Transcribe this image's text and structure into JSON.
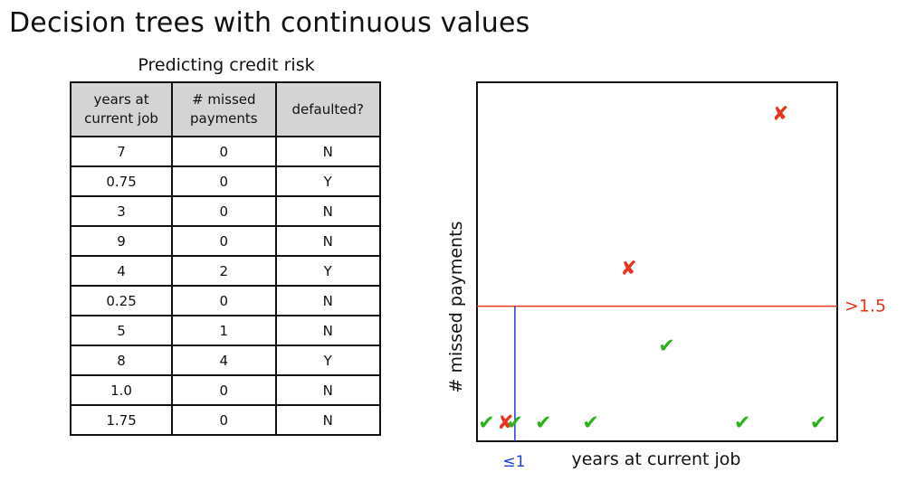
{
  "page": {
    "title": "Decision trees with continuous values"
  },
  "table": {
    "caption": "Predicting credit risk",
    "headers": [
      [
        "years at",
        "current job"
      ],
      [
        "# missed",
        "payments"
      ],
      [
        "defaulted?"
      ]
    ],
    "rows": [
      [
        "7",
        "0",
        "N"
      ],
      [
        "0.75",
        "0",
        "Y"
      ],
      [
        "3",
        "0",
        "N"
      ],
      [
        "9",
        "0",
        "N"
      ],
      [
        "4",
        "2",
        "Y"
      ],
      [
        "0.25",
        "0",
        "N"
      ],
      [
        "5",
        "1",
        "N"
      ],
      [
        "8",
        "4",
        "Y"
      ],
      [
        "1.0",
        "0",
        "N"
      ],
      [
        "1.75",
        "0",
        "N"
      ]
    ]
  },
  "chart_data": {
    "type": "scatter",
    "xlabel": "years at current job",
    "ylabel": "# missed payments",
    "xlim": [
      0,
      9.5
    ],
    "ylim": [
      -0.25,
      4.4
    ],
    "grid": false,
    "points": [
      {
        "x": 7,
        "y": 0,
        "defaulted": "N"
      },
      {
        "x": 0.75,
        "y": 0,
        "defaulted": "Y"
      },
      {
        "x": 3,
        "y": 0,
        "defaulted": "N"
      },
      {
        "x": 9,
        "y": 0,
        "defaulted": "N"
      },
      {
        "x": 4,
        "y": 2,
        "defaulted": "Y"
      },
      {
        "x": 0.25,
        "y": 0,
        "defaulted": "N"
      },
      {
        "x": 5,
        "y": 1,
        "defaulted": "N"
      },
      {
        "x": 8,
        "y": 4,
        "defaulted": "Y"
      },
      {
        "x": 1.0,
        "y": 0,
        "defaulted": "N"
      },
      {
        "x": 1.75,
        "y": 0,
        "defaulted": "N"
      }
    ],
    "markers": {
      "N": {
        "symbol": "✔",
        "color": "#2bb21c"
      },
      "Y": {
        "symbol": "✘",
        "color": "#e8361e"
      }
    },
    "splits": [
      {
        "axis": "y",
        "value": 1.5,
        "label": ">1.5",
        "color": "#e8361e"
      },
      {
        "axis": "x",
        "value": 1.0,
        "label": "≤1",
        "color": "#1f3fd8",
        "region": "below-y-split"
      }
    ]
  }
}
